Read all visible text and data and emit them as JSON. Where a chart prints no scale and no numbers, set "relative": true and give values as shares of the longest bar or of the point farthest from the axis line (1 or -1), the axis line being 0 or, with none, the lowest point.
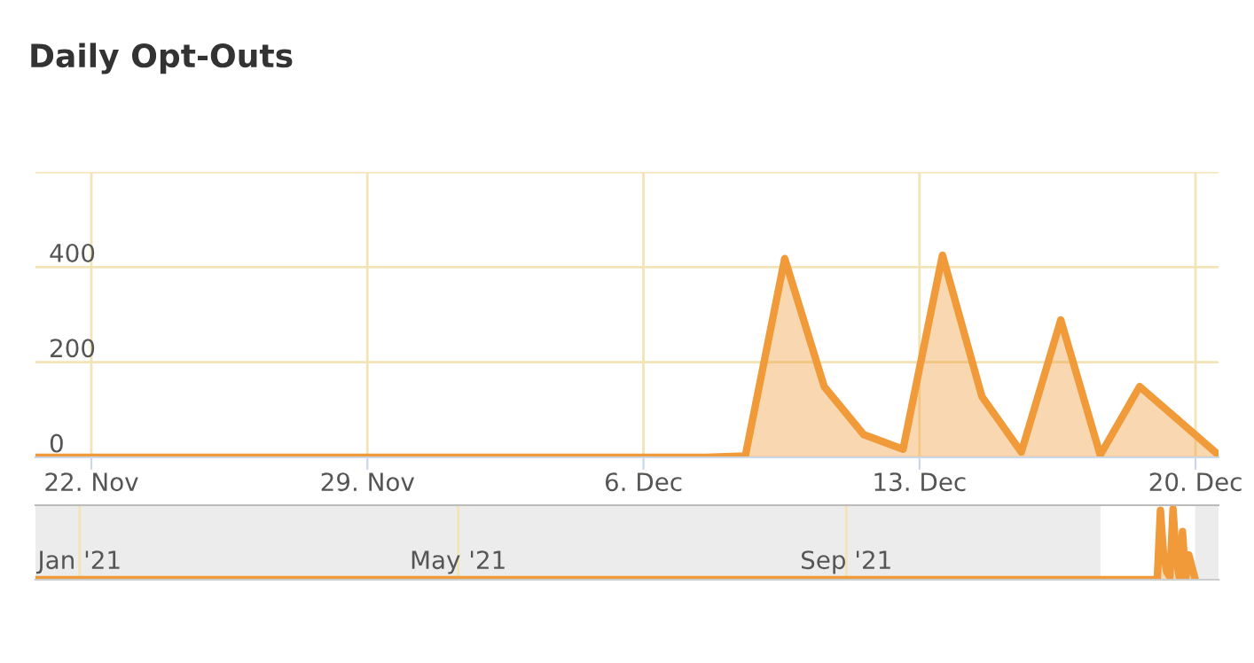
{
  "chart_data": [
    {
      "type": "area",
      "title": "Daily Opt-Outs",
      "x": [
        "2021-11-20T14:00",
        "2021-11-21T14:00",
        "2021-11-22T14:00",
        "2021-11-23T14:00",
        "2021-11-24T14:00",
        "2021-11-25T14:00",
        "2021-11-26T14:00",
        "2021-11-27T14:00",
        "2021-11-28T14:00",
        "2021-11-29T14:00",
        "2021-11-30T14:00",
        "2021-12-01T14:00",
        "2021-12-02T14:00",
        "2021-12-03T14:00",
        "2021-12-04T14:00",
        "2021-12-05T14:00",
        "2021-12-06T14:00",
        "2021-12-07T14:00",
        "2021-12-08T14:00",
        "2021-12-09T14:00",
        "2021-12-10T14:00",
        "2021-12-11T14:00",
        "2021-12-12T14:00",
        "2021-12-13T14:00",
        "2021-12-14T14:00",
        "2021-12-15T14:00",
        "2021-12-16T14:00",
        "2021-12-17T14:00",
        "2021-12-18T14:00",
        "2021-12-19T14:00",
        "2021-12-20T14:00"
      ],
      "series": [
        {
          "color": "#f09a3a",
          "values": [
            0,
            0,
            0,
            0,
            0,
            0,
            0,
            0,
            0,
            0,
            0,
            0,
            0,
            0,
            0,
            0,
            0,
            0,
            3,
            418,
            149,
            48,
            17,
            425,
            128,
            11,
            289,
            5,
            149,
            77,
            5
          ]
        }
      ],
      "xlim": [
        "2021-11-20T14:00",
        "2021-12-20T14:00"
      ],
      "xticks": [
        {
          "value": "2021-11-22",
          "label": "22. Nov"
        },
        {
          "value": "2021-11-29",
          "label": "29. Nov"
        },
        {
          "value": "2021-12-06",
          "label": "6. Dec"
        },
        {
          "value": "2021-12-13",
          "label": "13. Dec"
        },
        {
          "value": "2021-12-20",
          "label": "20. Dec"
        }
      ],
      "ylim": [
        0,
        600
      ],
      "yticks": [
        0,
        200,
        400,
        {
          "value": 600,
          "label": null
        }
      ],
      "grid": true,
      "legend": false,
      "marker": "none",
      "line_style": "solid"
    },
    {
      "type": "area",
      "relative": true,
      "x": [
        "2020-12-18",
        "2021-12-07T14:00",
        "2021-12-08T14:00",
        "2021-12-09T14:00",
        "2021-12-10T14:00",
        "2021-12-11T14:00",
        "2021-12-12T14:00",
        "2021-12-13T14:00",
        "2021-12-14T14:00",
        "2021-12-15T14:00",
        "2021-12-16T14:00",
        "2021-12-17T14:00",
        "2021-12-18T14:00",
        "2021-12-19T14:00",
        "2021-12-20T14:00"
      ],
      "series": [
        {
          "color": "#f09a3a",
          "values": [
            0,
            0,
            0.01,
            0.98,
            0.35,
            0.11,
            0.04,
            1,
            0.3,
            0.03,
            0.68,
            0.01,
            0.35,
            0.18,
            0.01
          ]
        }
      ],
      "xlim": [
        "2020-12-18",
        "2021-12-28"
      ],
      "xticks": [
        {
          "value": "2021-01-01",
          "label": "Jan '21"
        },
        {
          "value": "2021-05-01",
          "label": "May '21"
        },
        {
          "value": "2021-09-01",
          "label": "Sep '21"
        }
      ],
      "bands": [
        {
          "axis": "x",
          "from": "2020-12-18",
          "to": "2021-11-20T14:00",
          "color": "#e0e0e0"
        },
        {
          "axis": "x",
          "from": "2021-12-20T14:00",
          "to": "2021-12-28",
          "color": "#e0e0e0"
        }
      ],
      "grid": "x",
      "legend": false,
      "marker": "none"
    }
  ]
}
